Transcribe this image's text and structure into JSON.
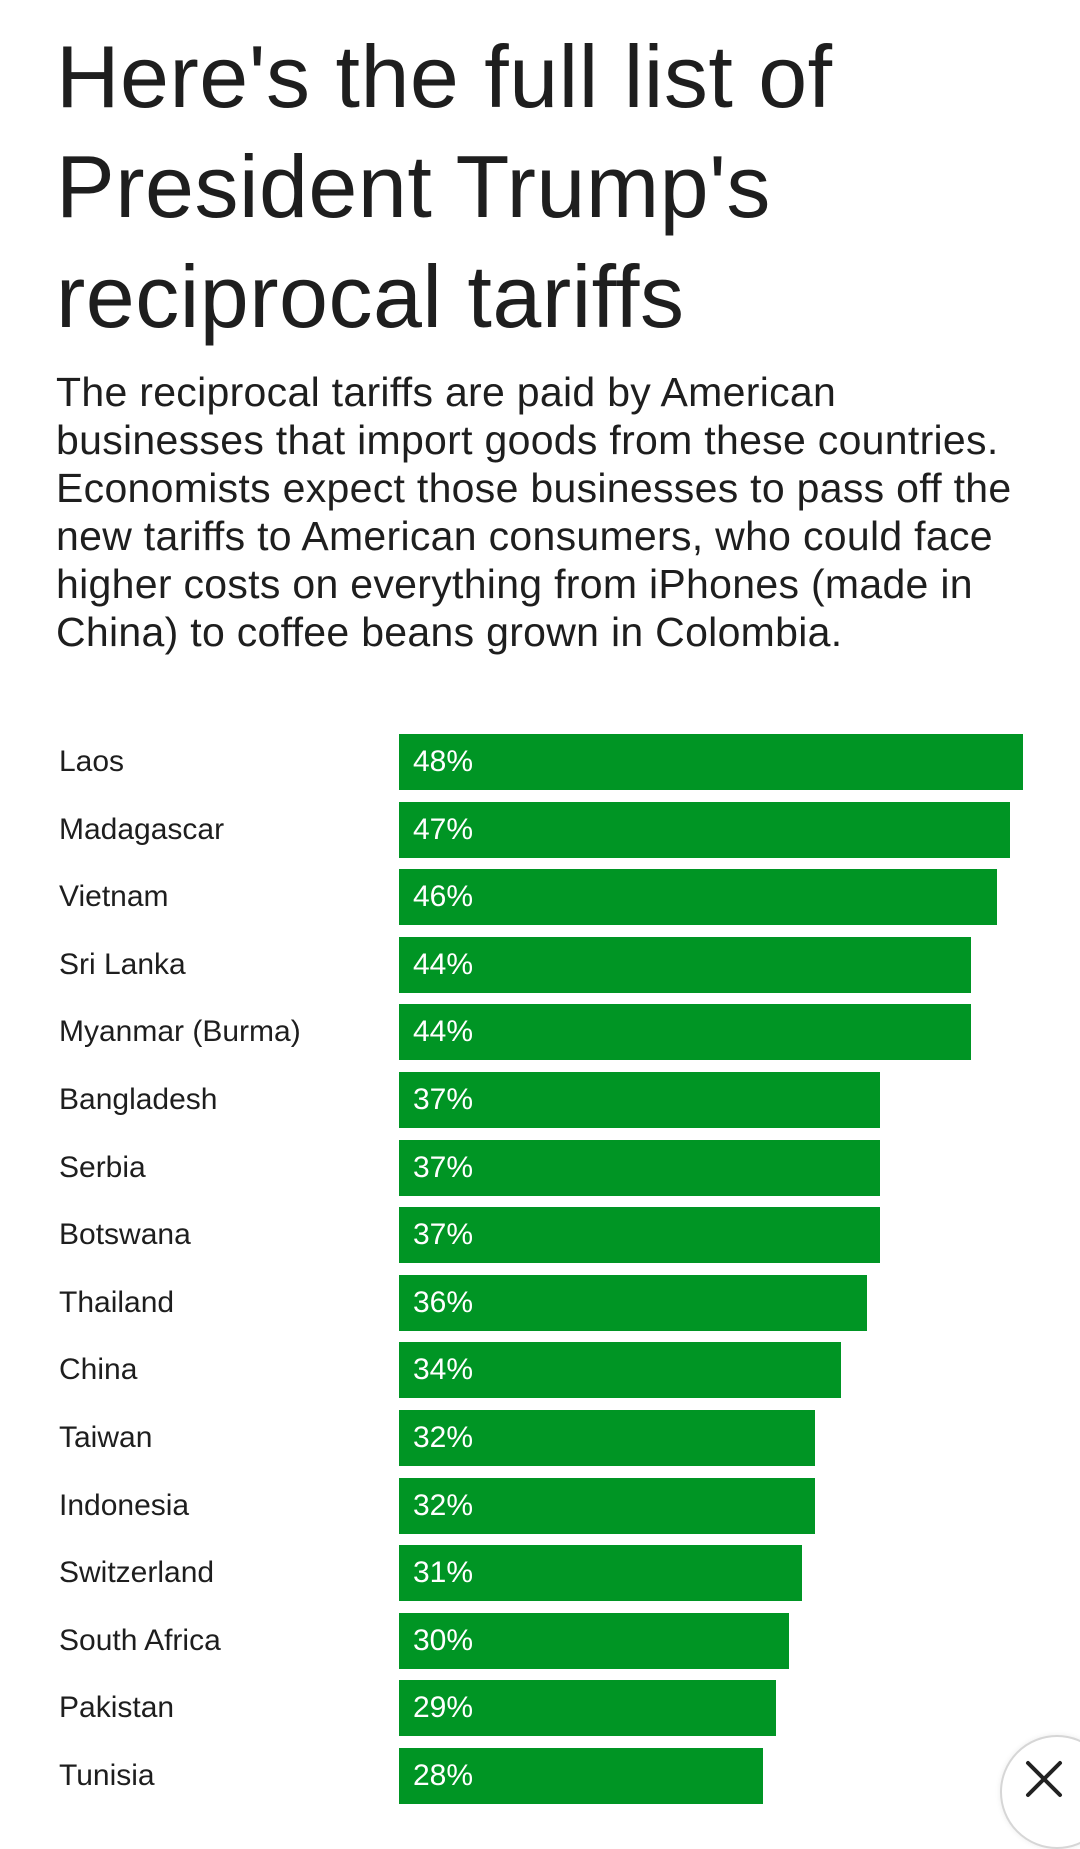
{
  "title": "Here's the full list of President Trump's reciprocal tariffs",
  "subtitle": "The reciprocal tariffs are paid by American businesses that import goods from these countries. Economists expect those businesses to pass off the new tariffs to American consumers, who could face higher costs on everything from iPhones (made in China) to coffee beans grown in Colombia.",
  "colors": {
    "bar": "#009524"
  },
  "close_button": {
    "icon": "close-icon"
  },
  "chart_data": {
    "type": "bar",
    "orientation": "horizontal",
    "categories": [
      "Laos",
      "Madagascar",
      "Vietnam",
      "Sri Lanka",
      "Myanmar (Burma)",
      "Bangladesh",
      "Serbia",
      "Botswana",
      "Thailand",
      "China",
      "Taiwan",
      "Indonesia",
      "Switzerland",
      "South Africa",
      "Pakistan",
      "Tunisia"
    ],
    "values": [
      48,
      47,
      46,
      44,
      44,
      37,
      37,
      37,
      36,
      34,
      32,
      32,
      31,
      30,
      29,
      28
    ],
    "value_labels": [
      "48%",
      "47%",
      "46%",
      "44%",
      "44%",
      "37%",
      "37%",
      "37%",
      "36%",
      "34%",
      "32%",
      "32%",
      "31%",
      "30%",
      "29%",
      "28%"
    ],
    "title": "",
    "xlabel": "",
    "ylabel": "",
    "xlim": [
      0,
      48
    ],
    "grid": false,
    "legend": "none"
  }
}
